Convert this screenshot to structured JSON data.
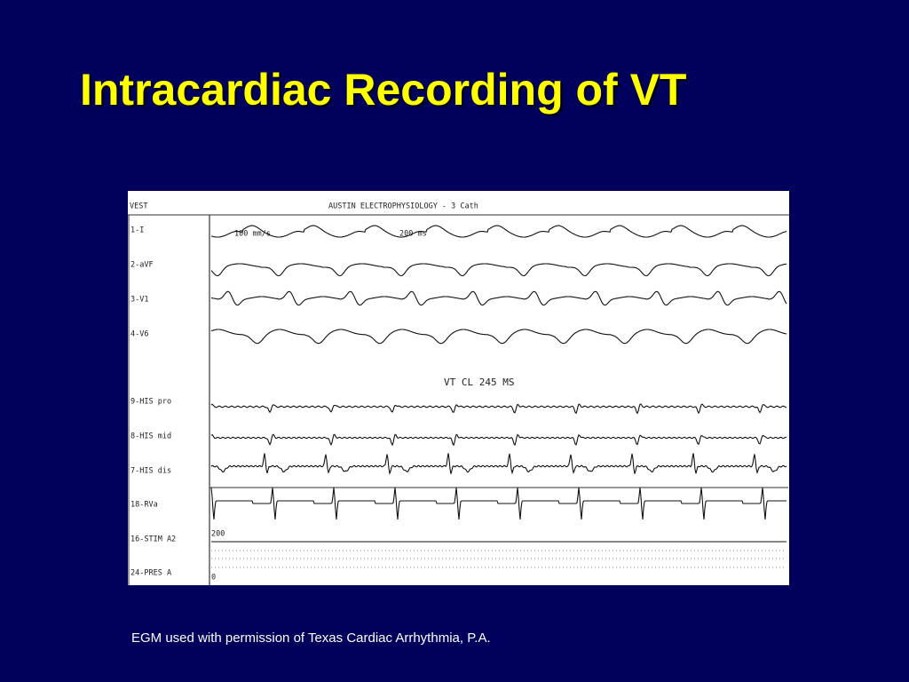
{
  "title": "Intracardiac Recording of VT",
  "caption": "EGM used with permission of Texas Cardiac Arrhythmia, P.A.",
  "recording": {
    "patient": "VEST",
    "header": "AUSTIN ELECTROPHYSIOLOGY - 3 Cath",
    "channels": [
      "1-I",
      "2-aVF",
      "3-V1",
      "4-V6",
      "9-HIS pro",
      "8-HIS mid",
      "7-HIS dis",
      "18-RVa",
      "16-STIM A2",
      "24-PRES A"
    ],
    "speed": "100 mm/s",
    "scale": "200 ms",
    "annotation": "VT CL 245 MS",
    "pressure_top": "200",
    "pressure_bottom": "0"
  }
}
